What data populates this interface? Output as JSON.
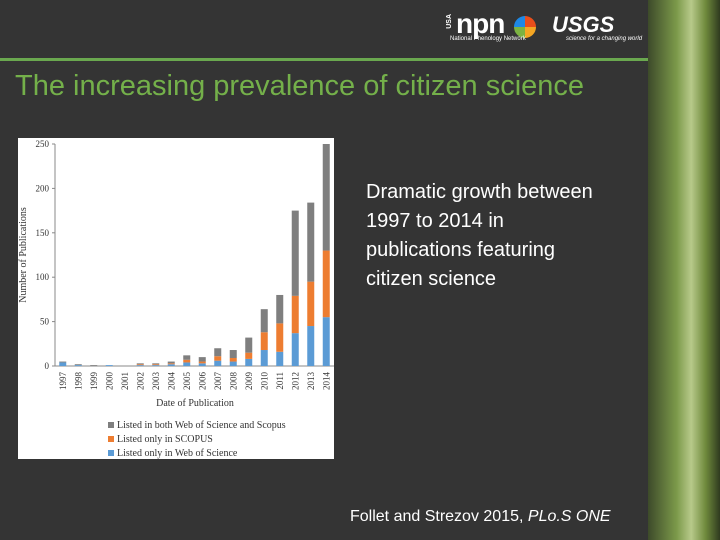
{
  "header": {
    "npn_country": "USA",
    "npn_logo": "npn",
    "npn_name": "National Phenology Network",
    "usgs_logo": "USGS",
    "usgs_tagline": "science for a changing world"
  },
  "slide": {
    "title": "The increasing prevalence of citizen science",
    "body": [
      "Dramatic growth between",
      "1997 to 2014 in",
      "publications featuring",
      "citizen science"
    ],
    "citation": "Follet and Strezov 2015,",
    "citation_journal": "PLo.S  ONE"
  },
  "chart_data": {
    "type": "stacked_bar",
    "x_label": "Date of Publication",
    "y_label": "Number of Publications",
    "categories": [
      "1997",
      "1998",
      "1999",
      "2000",
      "2001",
      "2002",
      "2003",
      "2004",
      "2005",
      "2006",
      "2007",
      "2008",
      "2009",
      "2010",
      "2011",
      "2012",
      "2013",
      "2014"
    ],
    "series": [
      {
        "name": "Listed only in Web of Science",
        "color": "#5b9bd5",
        "values": [
          4,
          1,
          0,
          1,
          0,
          1,
          1,
          2,
          4,
          3,
          6,
          5,
          8,
          18,
          16,
          37,
          45,
          55
        ]
      },
      {
        "name": "Listed only in SCOPUS",
        "color": "#ed7d31",
        "values": [
          0,
          0,
          0,
          0,
          0,
          1,
          1,
          1,
          3,
          2,
          5,
          4,
          7,
          20,
          32,
          42,
          50,
          75
        ]
      },
      {
        "name": "Listed in both Web of Science and Scopus",
        "color": "#7f7f7f",
        "values": [
          1,
          1,
          1,
          0,
          0,
          1,
          1,
          2,
          5,
          5,
          9,
          9,
          17,
          26,
          32,
          96,
          89,
          120
        ]
      }
    ],
    "legend_order": [
      2,
      1,
      0
    ],
    "ylim": [
      0,
      250
    ],
    "yticks": [
      0,
      50,
      100,
      150,
      200,
      250
    ],
    "grid": false
  }
}
